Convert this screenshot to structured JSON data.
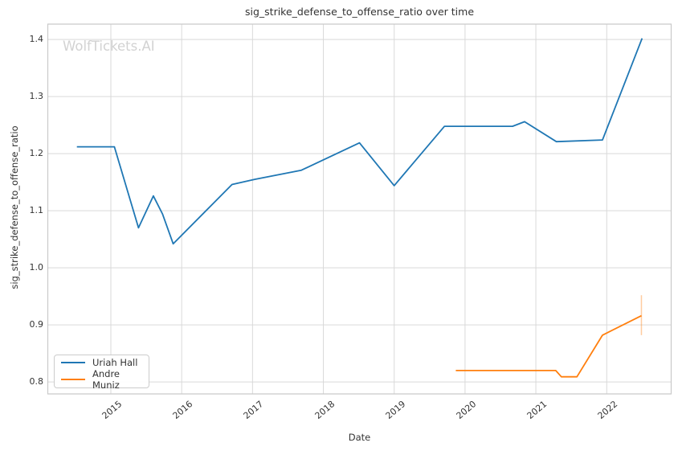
{
  "watermark": "WolfTickets.AI",
  "chart_data": {
    "type": "line",
    "title": "sig_strike_defense_to_offense_ratio over time",
    "xlabel": "Date",
    "ylabel": "sig_strike_defense_to_offense_ratio",
    "grid": true,
    "x_axis": {
      "range": [
        2014.11,
        2022.91
      ],
      "ticks": [
        2015,
        2016,
        2017,
        2018,
        2019,
        2020,
        2021,
        2022
      ],
      "tick_rotation_deg": -40
    },
    "y_axis": {
      "range": [
        0.779,
        1.427
      ],
      "ticks": [
        0.8,
        0.9,
        1.0,
        1.1,
        1.2,
        1.3,
        1.4
      ]
    },
    "legend": {
      "position": "lower-left",
      "entries": [
        "Uriah Hall",
        "Andre Muniz"
      ]
    },
    "series": [
      {
        "name": "Uriah Hall",
        "color": "#1f77b4",
        "points": [
          [
            2014.52,
            1.212
          ],
          [
            2015.05,
            1.212
          ],
          [
            2015.39,
            1.07
          ],
          [
            2015.6,
            1.126
          ],
          [
            2015.73,
            1.094
          ],
          [
            2015.88,
            1.042
          ],
          [
            2016.71,
            1.146
          ],
          [
            2017.03,
            1.155
          ],
          [
            2017.69,
            1.171
          ],
          [
            2018.51,
            1.219
          ],
          [
            2019.0,
            1.144
          ],
          [
            2019.71,
            1.248
          ],
          [
            2020.67,
            1.248
          ],
          [
            2020.84,
            1.256
          ],
          [
            2021.29,
            1.221
          ],
          [
            2021.94,
            1.224
          ],
          [
            2022.5,
            1.402
          ]
        ]
      },
      {
        "name": "Andre Muniz",
        "color": "#ff7f0e",
        "points": [
          [
            2019.87,
            0.82
          ],
          [
            2021.28,
            0.82
          ],
          [
            2021.36,
            0.809
          ],
          [
            2021.58,
            0.809
          ],
          [
            2021.94,
            0.882
          ],
          [
            2022.49,
            0.916
          ]
        ],
        "error_bar": {
          "x": 2022.49,
          "low": 0.882,
          "high": 0.952
        }
      }
    ],
    "colors": {
      "grid": "#d9d9d9",
      "spine": "#c9c9c9",
      "text": "#333333",
      "watermark": "#d2d2d2"
    }
  }
}
